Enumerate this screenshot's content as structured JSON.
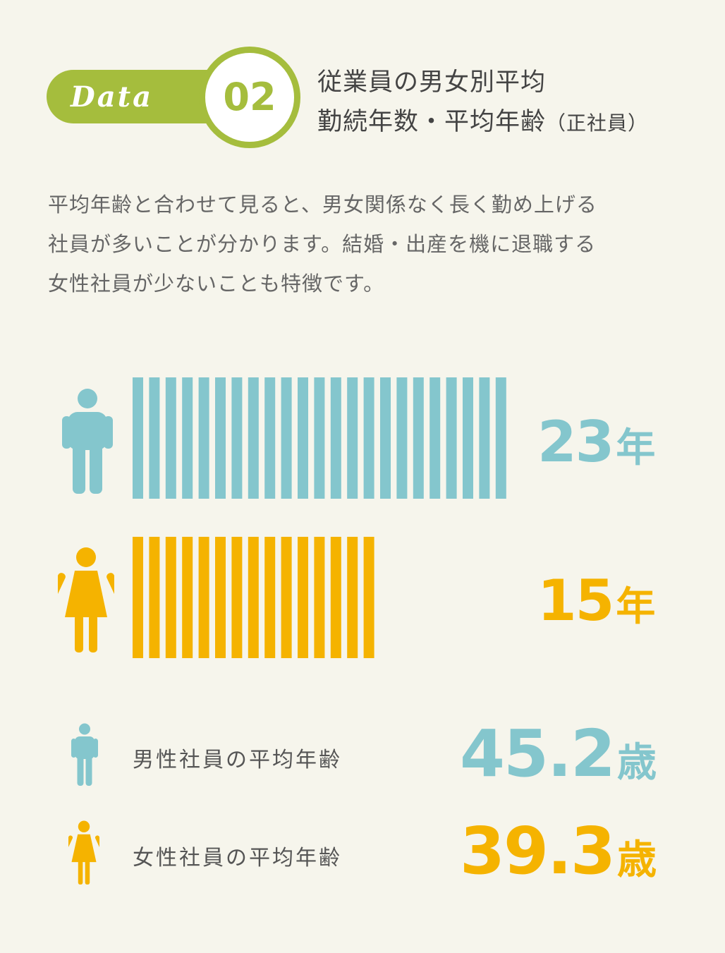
{
  "header": {
    "badge_label": "Data",
    "badge_number": "02",
    "title_line1": "従業員の男女別平均",
    "title_line2_main": "勤続年数・平均年齢",
    "title_line2_sub": "（正社員）"
  },
  "description": [
    "平均年齢と合わせて見ると、男女関係なく長く勤め上げる",
    "社員が多いことが分かります。結婚・出産を機に退職する",
    "女性社員が少ないことも特徴です。"
  ],
  "colors": {
    "male": "#84c6cd",
    "female": "#f5b300",
    "accent": "#a5bd3d",
    "background": "#f6f5ec"
  },
  "icons": {
    "male": "male-person-icon",
    "female": "female-person-icon"
  },
  "chart_data": {
    "type": "bar",
    "categories": [
      "male",
      "female"
    ],
    "values": [
      23,
      15
    ],
    "unit": "年",
    "value_labels": [
      "23",
      "15"
    ]
  },
  "ages": {
    "male": {
      "label": "男性社員の平均年齢",
      "value": "45.2",
      "unit": "歳"
    },
    "female": {
      "label": "女性社員の平均年齢",
      "value": "39.3",
      "unit": "歳"
    }
  }
}
